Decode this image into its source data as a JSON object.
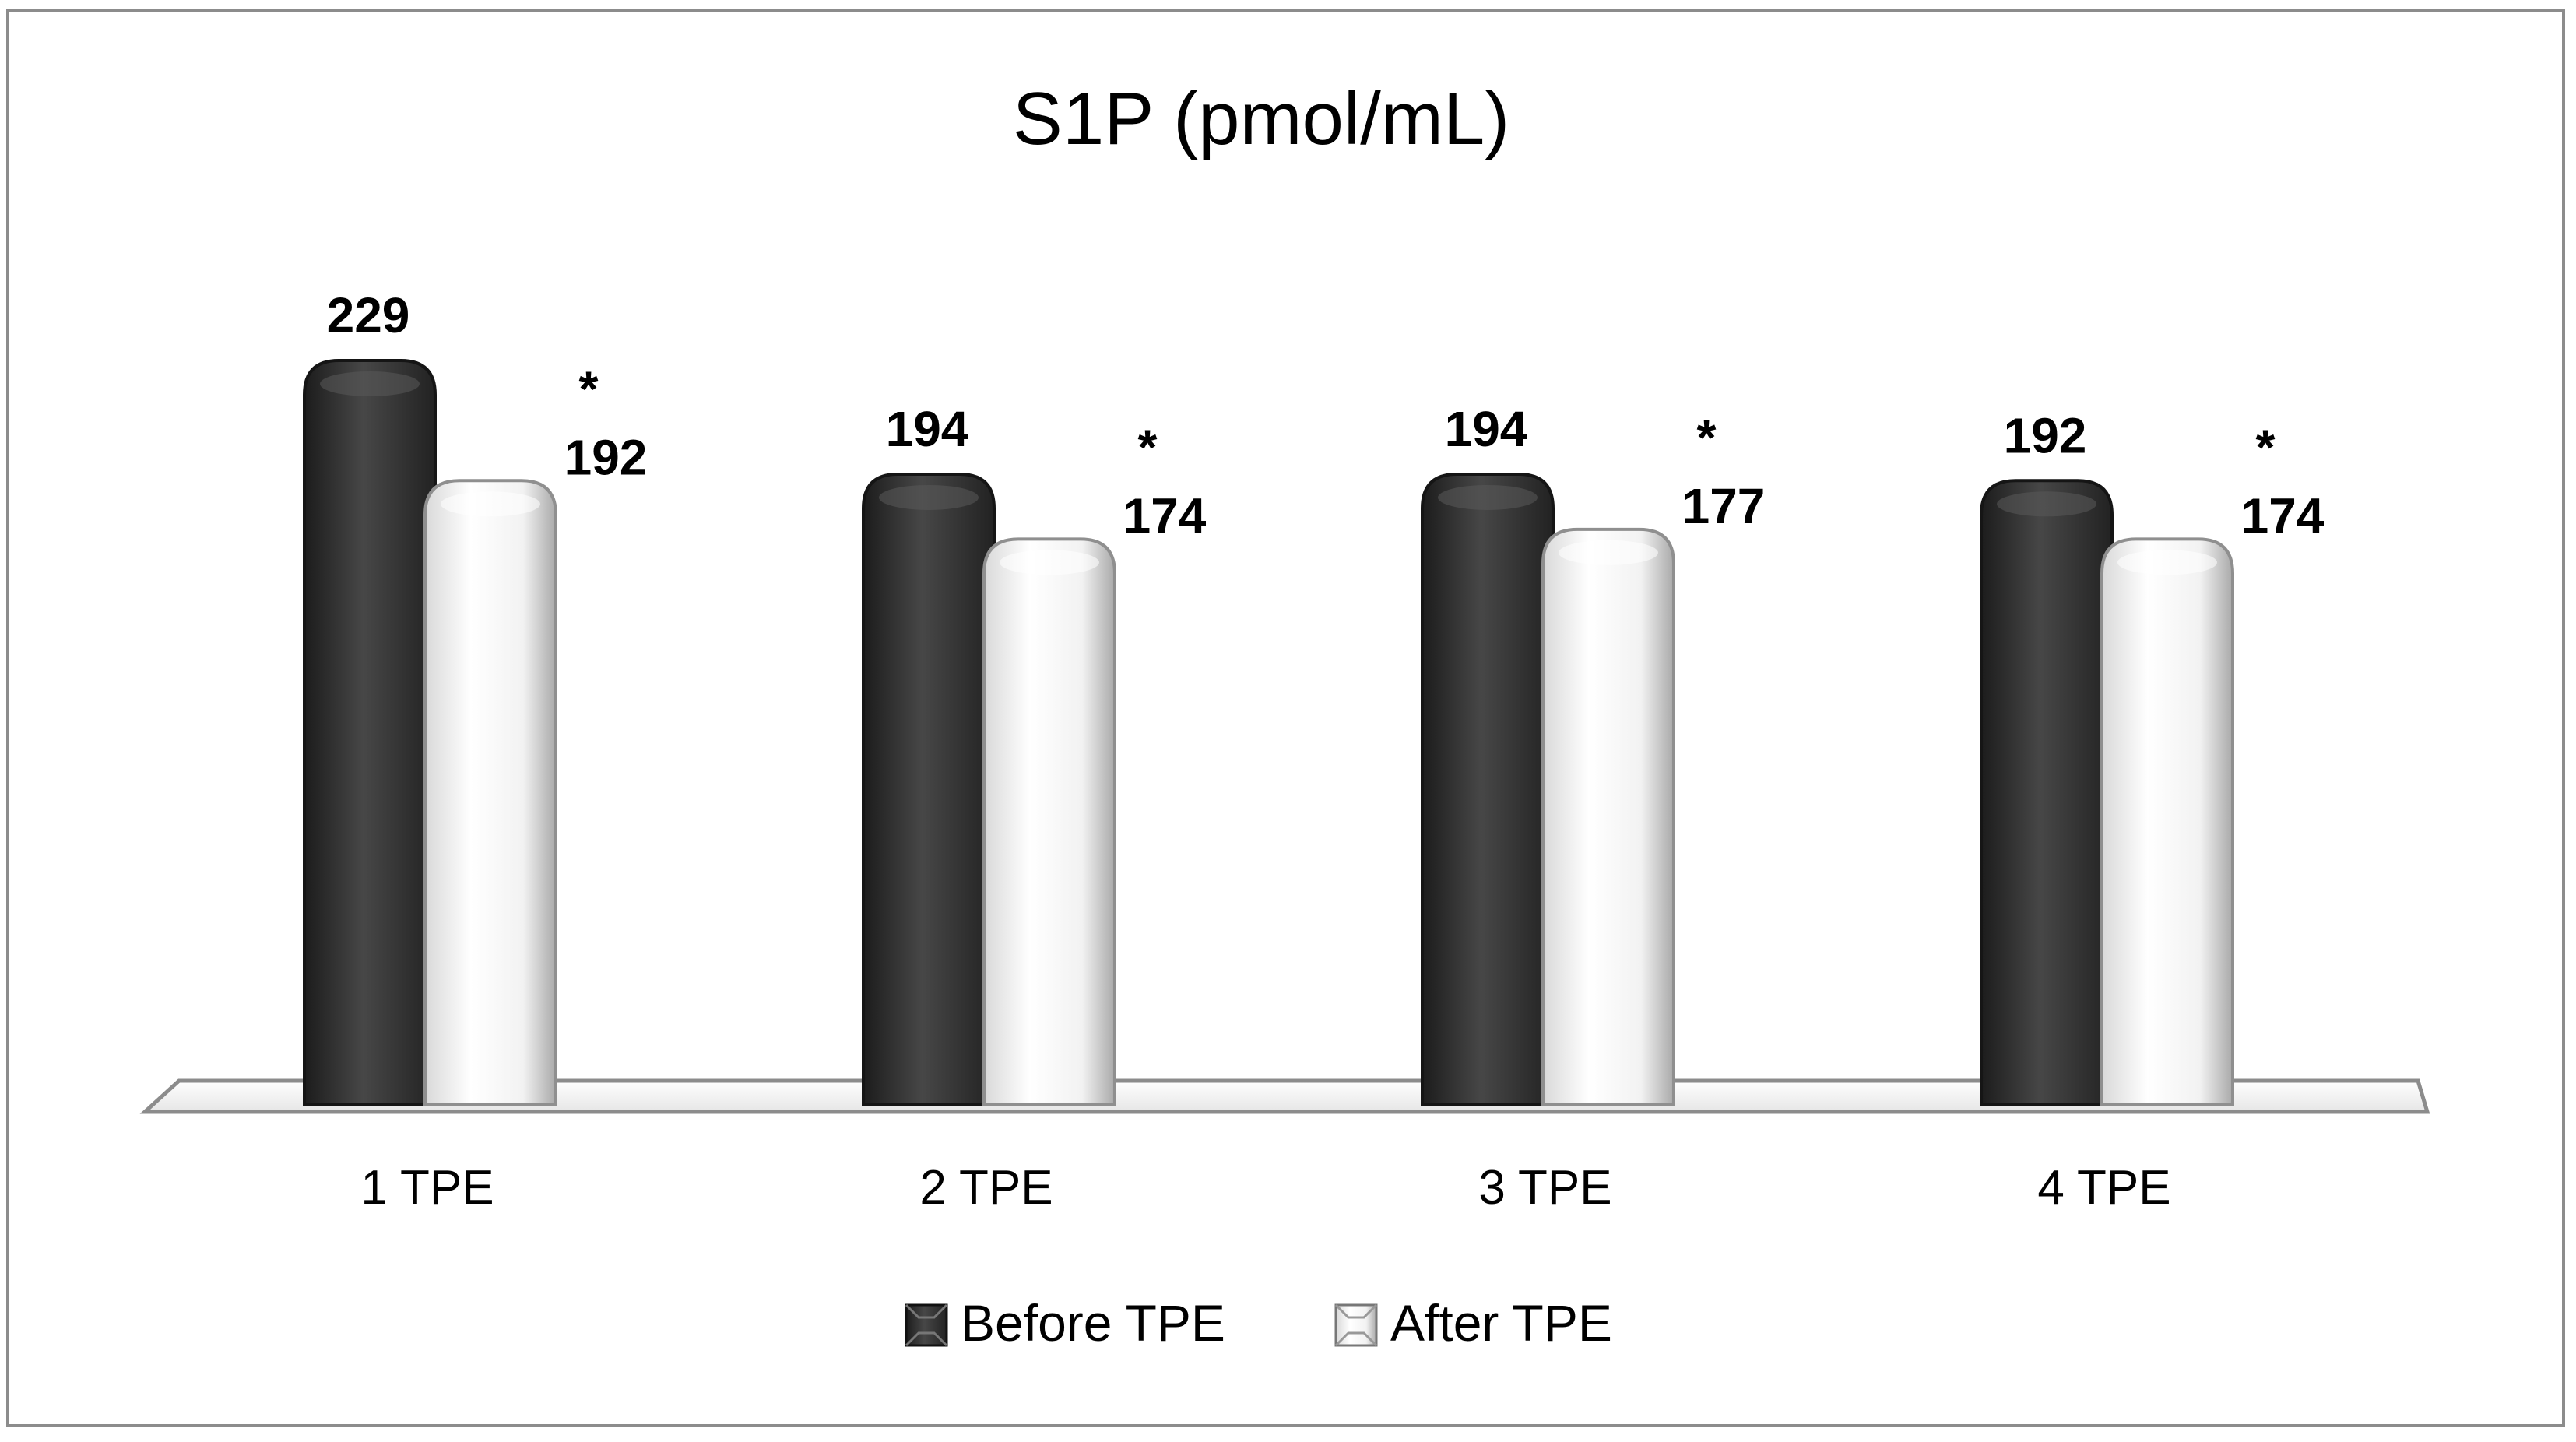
{
  "chart_data": {
    "type": "bar",
    "title": "S1P (pmol/mL)",
    "xlabel": "",
    "ylabel": "",
    "ylim": [
      0,
      229
    ],
    "categories": [
      "1 TPE",
      "2 TPE",
      "3 TPE",
      "4 TPE"
    ],
    "series": [
      {
        "name": "Before TPE",
        "color": "#3a3a3a",
        "values": [
          229,
          194,
          194,
          192
        ]
      },
      {
        "name": "After TPE",
        "color": "#f3f3f3",
        "values": [
          192,
          174,
          177,
          174
        ]
      }
    ],
    "value_labels": {
      "Before TPE": [
        "229",
        "194",
        "194",
        "192"
      ],
      "After TPE": [
        "192",
        "174",
        "177",
        "174"
      ]
    },
    "annotations": [
      "*",
      "*",
      "*",
      "*"
    ],
    "legend": {
      "position": "bottom",
      "items": [
        "Before TPE",
        "After TPE"
      ]
    }
  }
}
